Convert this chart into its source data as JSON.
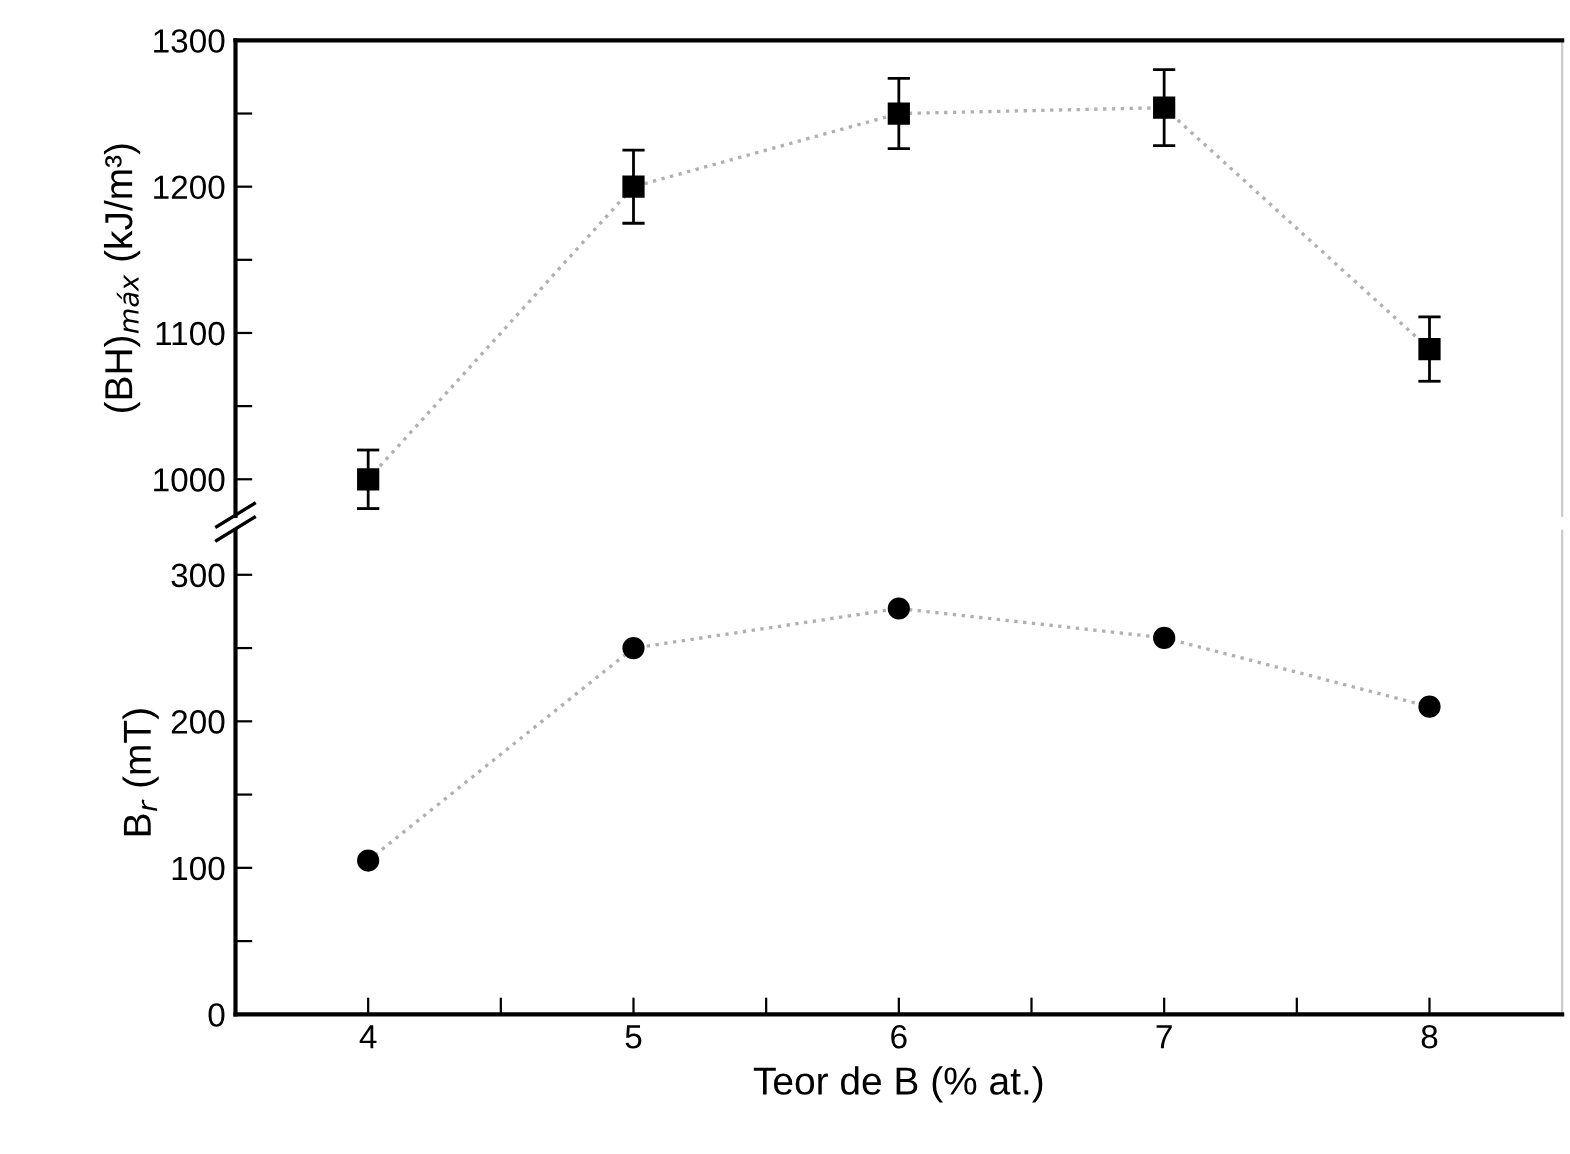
{
  "chart_data": [
    {
      "type": "line",
      "ylabel": "(BH)$_{máx}$ (kJ/m³)",
      "x": [
        4,
        5,
        6,
        7,
        8
      ],
      "series": [
        {
          "color": "#000000",
          "values": [
            1000,
            1200,
            1250,
            1254,
            1089
          ],
          "errors": [
            20,
            25,
            24,
            26,
            22
          ]
        }
      ],
      "marker": "square",
      "line_style": "dotted",
      "xlim": [
        3.5,
        8.5
      ],
      "xticks": [
        4,
        5,
        6,
        7,
        8
      ],
      "ylim": [
        975,
        1300
      ],
      "yticks": [
        1000,
        {
          "value": 1050,
          "label": null
        },
        1100,
        {
          "value": 1150,
          "label": null
        },
        1200,
        {
          "value": 1250,
          "label": null
        },
        1300
      ],
      "tick_labels": "y"
    },
    {
      "type": "line",
      "xlabel": "Teor de B (% at.)",
      "ylabel": "B$_{r}$ (mT)",
      "x": [
        4,
        5,
        6,
        7,
        8
      ],
      "series": [
        {
          "color": "#000000",
          "values": [
            105,
            250,
            277,
            257,
            210
          ]
        }
      ],
      "marker": "circle",
      "line_style": "dotted",
      "xlim": [
        3.5,
        8.5
      ],
      "xticks": [
        4,
        {
          "value": 4.5,
          "label": null
        },
        5,
        {
          "value": 5.5,
          "label": null
        },
        6,
        {
          "value": 6.5,
          "label": null
        },
        7,
        {
          "value": 7.5,
          "label": null
        },
        8
      ],
      "ylim": [
        0,
        330
      ],
      "yticks": [
        0,
        {
          "value": 50,
          "label": null
        },
        100,
        {
          "value": 150,
          "label": null
        },
        200,
        {
          "value": 250,
          "label": null
        },
        300
      ]
    }
  ]
}
